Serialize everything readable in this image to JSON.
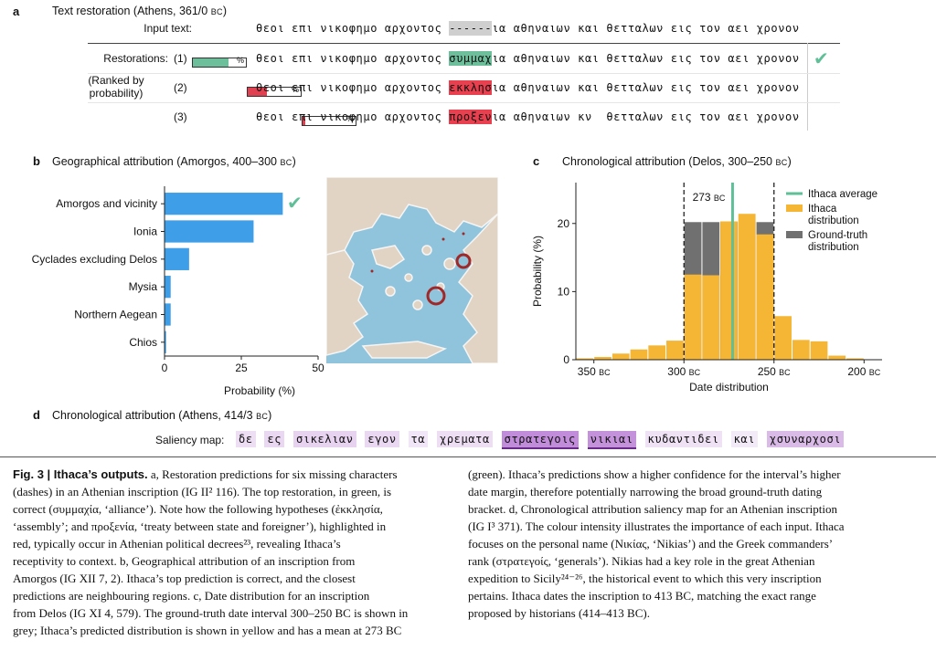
{
  "panel_a": {
    "label": "a",
    "title": "Text restoration (Athens, 361/0 ",
    "title_bc": "BC",
    "title_end": ")",
    "input_label": "Input text:",
    "input_before": "θεοι επι νικοφημο αρχοντος ",
    "input_mask": "------",
    "input_after": "ια αθηναιων και θετταλων εις τον αει χρονον",
    "restorations_label": "Restorations:",
    "ranked_label_1": "(Ranked by",
    "ranked_label_2": "probability)",
    "rows": [
      {
        "rank": "(1)",
        "pct": "%",
        "prob": 0.68,
        "color": "#6dbf9b",
        "before": "θεοι επι νικοφημο αρχοντος ",
        "hl": "συμμαχ",
        "after": "ια αθηναιων και θετταλων εις τον αει χρονον",
        "hl_color": "#6dbf9b",
        "check": "✔"
      },
      {
        "rank": "(2)",
        "pct": "%",
        "prob": 0.36,
        "color": "#e0404f",
        "before": "θεοι επι νικοφημο αρχοντος ",
        "hl": "εκκλησ",
        "after": "ια αθηναιων και θετταλων εις τον αει χρονον",
        "hl_color": "#e8404f",
        "check": ""
      },
      {
        "rank": "(3)",
        "pct": "%",
        "prob": 0.05,
        "color": "#e0404f",
        "before": "θεοι επι νικοφημο αρχοντος ",
        "hl": "προξεν",
        "after": "ια αθηναιων κν  θετταλων εις τον αει χρονον",
        "hl_color": "#e8404f",
        "check": ""
      }
    ]
  },
  "panel_b": {
    "label": "b",
    "title": "Geographical attribution (Amorgos, 400–300 ",
    "title_bc": "BC",
    "title_end": ")",
    "check": "✔"
  },
  "panel_c": {
    "label": "c",
    "title": "Chronological attribution (Delos, 300–250 ",
    "title_bc": "BC",
    "title_end": ")",
    "mean_label": "273",
    "mean_bc": "BC",
    "legend": [
      "Ithaca average",
      "Ithaca",
      "distribution",
      "Ground-truth",
      "distribution"
    ]
  },
  "panel_d": {
    "label": "d",
    "title": "Chronological attribution (Athens, 414/3 ",
    "title_bc": "BC",
    "title_end": ")",
    "saliency_label": "Saliency map:",
    "tokens": [
      {
        "t": "δε",
        "w": 0.15
      },
      {
        "t": "ες",
        "w": 0.2
      },
      {
        "t": "σικελιαν",
        "w": 0.25
      },
      {
        "t": "εγον",
        "w": 0.2
      },
      {
        "t": "τα",
        "w": 0.08
      },
      {
        "t": "χρεματα",
        "w": 0.15
      },
      {
        "t": "στρατεγοις",
        "w": 0.85
      },
      {
        "t": "νικιαι",
        "w": 0.8
      },
      {
        "t": "κυδαντιδει",
        "w": 0.12
      },
      {
        "t": "και",
        "w": 0.05
      },
      {
        "t": "χσυναρχοσι",
        "w": 0.45
      }
    ]
  },
  "chart_data": [
    {
      "type": "bar",
      "orientation": "horizontal",
      "categories": [
        "Amorgos and vicinity",
        "Ionia",
        "Cyclades excluding Delos",
        "Mysia",
        "Northern Aegean",
        "Chios"
      ],
      "values": [
        38.5,
        29,
        8,
        2,
        2,
        0.5
      ],
      "xlabel": "Probability (%)",
      "ylabel": "",
      "xlim": [
        0,
        50
      ],
      "xticks": [
        0,
        25,
        50
      ],
      "color": "#3f9ee8",
      "grid": false
    },
    {
      "type": "bar",
      "subtype": "histogram",
      "xlabel": "Date distribution",
      "ylabel": "Probability (%)",
      "xlim": [
        -360,
        -190
      ],
      "ylim": [
        0,
        26
      ],
      "xticks": [
        {
          "v": -350,
          "l": "350"
        },
        {
          "v": -300,
          "l": "300"
        },
        {
          "v": -250,
          "l": "250"
        },
        {
          "v": -200,
          "l": "200"
        }
      ],
      "xtick_suffix": "BC",
      "yticks": [
        0,
        10,
        20
      ],
      "bin_width": 10,
      "series": [
        {
          "name": "Ithaca distribution",
          "color": "#f5b535",
          "bins": [
            -355,
            -345,
            -335,
            -325,
            -315,
            -305,
            -295,
            -285,
            -275,
            -265,
            -255,
            -245,
            -235,
            -225,
            -215,
            -205
          ],
          "values": [
            0.2,
            0.4,
            0.9,
            1.5,
            2.1,
            2.8,
            12.5,
            12.4,
            20.3,
            21.4,
            18.4,
            6.4,
            2.9,
            2.7,
            0.6,
            0.2
          ]
        },
        {
          "name": "Ground-truth distribution",
          "color": "#707070",
          "bins": [
            -295,
            -285,
            -275,
            -265,
            -255
          ],
          "values": [
            20.2,
            20.2,
            20.2,
            20.2,
            20.2
          ]
        }
      ],
      "mean": -273,
      "mean_color": "#5fbf97",
      "ground_truth_interval": [
        -300,
        -250
      ],
      "legend_placement": "top-right"
    }
  ],
  "caption": {
    "fig": "Fig. 3 | Ithaca’s outputs.",
    "col1": [
      " a, Restoration predictions for six missing characters",
      "(dashes) in an Athenian inscription (IG II² 116). The top restoration, in green, is",
      "correct (συμμαχία, ‘alliance’). Note how the following hypotheses (ἐκκλησία,",
      "‘assembly’; and προξενία, ‘treaty between state and foreigner’), highlighted in",
      "red, typically occur in Athenian political decrees²³, revealing Ithaca’s",
      "receptivity to context. b, Geographical attribution of an inscription from",
      "Amorgos (IG XII 7, 2). Ithaca’s top prediction is correct, and the closest",
      "predictions are neighbouring regions. c, Date distribution for an inscription",
      "from Delos (IG XI 4, 579). The ground-truth date interval 300–250 BC is shown in",
      "grey; Ithaca’s predicted distribution is shown in yellow and has a mean at 273 BC"
    ],
    "col2": [
      "(green). Ithaca’s predictions show a higher confidence for the interval’s higher",
      "date margin, therefore potentially narrowing the broad ground-truth dating",
      "bracket. d, Chronological attribution saliency map for an Athenian inscription",
      "(IG I³ 371). The colour intensity illustrates the importance of each input. Ithaca",
      "focuses on the personal name (Νικίας, ‘Nikias’) and the Greek commanders’",
      "rank (στρατεγοίς, ‘generals’). Nikias had a key role in the great Athenian",
      "expedition to Sicily²⁴⁻²⁶, the historical event to which this very inscription",
      "pertains. Ithaca dates the inscription to 413 BC, matching the exact range",
      "proposed by historians (414–413 BC)."
    ]
  }
}
